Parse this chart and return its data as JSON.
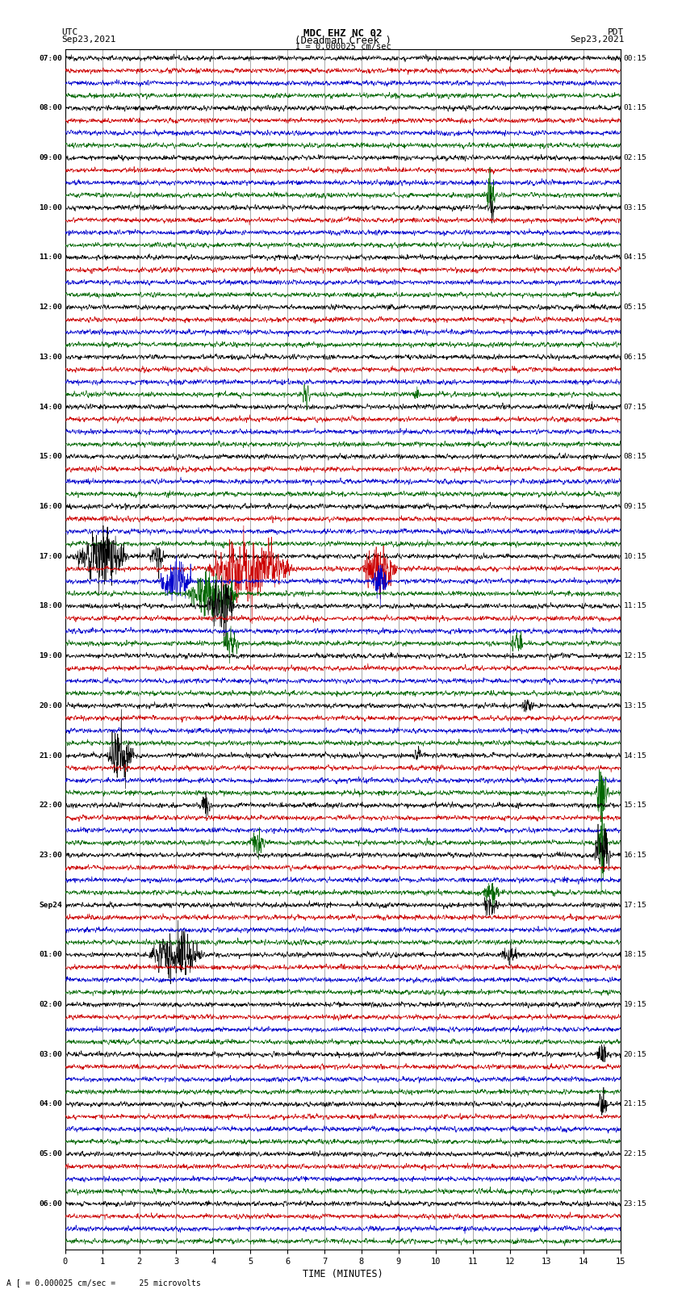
{
  "title_line1": "MDC EHZ NC 02",
  "title_line2": "(Deadman Creek )",
  "title_line3": "I = 0.000025 cm/sec",
  "label_utc": "UTC",
  "label_pdt": "PDT",
  "date_left": "Sep23,2021",
  "date_right": "Sep23,2021",
  "xlabel": "TIME (MINUTES)",
  "bottom_label": "A [ = 0.000025 cm/sec =     25 microvolts",
  "bg_color": "#ffffff",
  "trace_colors": [
    "#000000",
    "#cc0000",
    "#0000cc",
    "#006600"
  ],
  "grid_color": "#888888",
  "left_times": [
    "07:00",
    "",
    "",
    "",
    "08:00",
    "",
    "",
    "",
    "09:00",
    "",
    "",
    "",
    "10:00",
    "",
    "",
    "",
    "11:00",
    "",
    "",
    "",
    "12:00",
    "",
    "",
    "",
    "13:00",
    "",
    "",
    "",
    "14:00",
    "",
    "",
    "",
    "15:00",
    "",
    "",
    "",
    "16:00",
    "",
    "",
    "",
    "17:00",
    "",
    "",
    "",
    "18:00",
    "",
    "",
    "",
    "19:00",
    "",
    "",
    "",
    "20:00",
    "",
    "",
    "",
    "21:00",
    "",
    "",
    "",
    "22:00",
    "",
    "",
    "",
    "23:00",
    "",
    "",
    "",
    "Sep24",
    "",
    "",
    "",
    "01:00",
    "",
    "",
    "",
    "02:00",
    "",
    "",
    "",
    "03:00",
    "",
    "",
    "",
    "04:00",
    "",
    "",
    "",
    "05:00",
    "",
    "",
    "",
    "06:00",
    "",
    "",
    ""
  ],
  "right_times": [
    "00:15",
    "",
    "",
    "",
    "01:15",
    "",
    "",
    "",
    "02:15",
    "",
    "",
    "",
    "03:15",
    "",
    "",
    "",
    "04:15",
    "",
    "",
    "",
    "05:15",
    "",
    "",
    "",
    "06:15",
    "",
    "",
    "",
    "07:15",
    "",
    "",
    "",
    "08:15",
    "",
    "",
    "",
    "09:15",
    "",
    "",
    "",
    "10:15",
    "",
    "",
    "",
    "11:15",
    "",
    "",
    "",
    "12:15",
    "",
    "",
    "",
    "13:15",
    "",
    "",
    "",
    "14:15",
    "",
    "",
    "",
    "15:15",
    "",
    "",
    "",
    "16:15",
    "",
    "",
    "",
    "17:15",
    "",
    "",
    "",
    "18:15",
    "",
    "",
    "",
    "19:15",
    "",
    "",
    "",
    "20:15",
    "",
    "",
    "",
    "21:15",
    "",
    "",
    "",
    "22:15",
    "",
    "",
    "",
    "23:15",
    "",
    "",
    ""
  ],
  "n_rows": 96,
  "minutes_per_row": 15,
  "x_ticks": [
    0,
    1,
    2,
    3,
    4,
    5,
    6,
    7,
    8,
    9,
    10,
    11,
    12,
    13,
    14,
    15
  ],
  "figwidth": 8.5,
  "figheight": 16.13
}
